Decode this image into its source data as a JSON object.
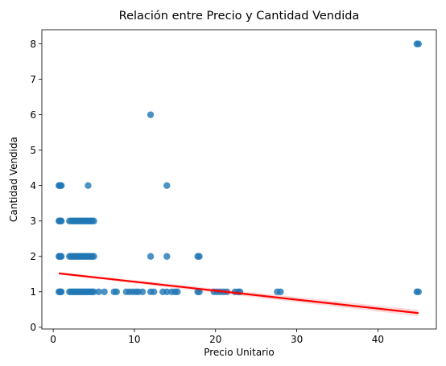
{
  "chart_data": {
    "type": "scatter",
    "title": "Relación entre Precio y Cantidad Vendida",
    "xlabel": "Precio Unitario",
    "ylabel": "Cantidad Vendida",
    "xlim": [
      -1.4,
      47.2
    ],
    "ylim": [
      -0.05,
      8.4
    ],
    "xticks": [
      0,
      10,
      20,
      30,
      40
    ],
    "yticks": [
      0,
      1,
      2,
      3,
      4,
      5,
      6,
      7,
      8
    ],
    "grid": false,
    "point_color": "#1f77b4",
    "regression_color": "#ff0000",
    "regression_line": {
      "x": [
        0.7,
        45
      ],
      "y": [
        1.52,
        0.4
      ]
    },
    "series": [
      {
        "points": [
          [
            0.7,
            1
          ],
          [
            0.8,
            1
          ],
          [
            0.9,
            1
          ],
          [
            1.0,
            1
          ],
          [
            2.0,
            1
          ],
          [
            2.2,
            1
          ],
          [
            2.4,
            1
          ],
          [
            2.6,
            1
          ],
          [
            2.8,
            1
          ],
          [
            3.0,
            1
          ],
          [
            3.2,
            1
          ],
          [
            3.4,
            1
          ],
          [
            3.6,
            1
          ],
          [
            3.8,
            1
          ],
          [
            4.0,
            1
          ],
          [
            4.2,
            1
          ],
          [
            4.4,
            1
          ],
          [
            4.6,
            1
          ],
          [
            4.8,
            1
          ],
          [
            5.0,
            1
          ],
          [
            5.6,
            1
          ],
          [
            6.3,
            1
          ],
          [
            7.5,
            1
          ],
          [
            7.8,
            1
          ],
          [
            9.0,
            1
          ],
          [
            9.4,
            1
          ],
          [
            9.8,
            1
          ],
          [
            10.2,
            1
          ],
          [
            10.5,
            1
          ],
          [
            11.0,
            1
          ],
          [
            12.0,
            1
          ],
          [
            12.4,
            1
          ],
          [
            13.5,
            1
          ],
          [
            14.0,
            1
          ],
          [
            14.6,
            1
          ],
          [
            15.0,
            1
          ],
          [
            15.3,
            1
          ],
          [
            17.8,
            1
          ],
          [
            18.0,
            1
          ],
          [
            19.8,
            1
          ],
          [
            20.2,
            1
          ],
          [
            20.6,
            1
          ],
          [
            21.0,
            1
          ],
          [
            21.4,
            1
          ],
          [
            22.4,
            1
          ],
          [
            22.8,
            1
          ],
          [
            23.0,
            1
          ],
          [
            27.6,
            1
          ],
          [
            28.0,
            1
          ],
          [
            44.8,
            1
          ],
          [
            45.0,
            1
          ],
          [
            0.7,
            2
          ],
          [
            0.8,
            2
          ],
          [
            0.9,
            2
          ],
          [
            1.0,
            2
          ],
          [
            2.0,
            2
          ],
          [
            2.2,
            2
          ],
          [
            2.4,
            2
          ],
          [
            2.6,
            2
          ],
          [
            2.8,
            2
          ],
          [
            3.0,
            2
          ],
          [
            3.2,
            2
          ],
          [
            3.4,
            2
          ],
          [
            3.6,
            2
          ],
          [
            3.8,
            2
          ],
          [
            4.0,
            2
          ],
          [
            4.2,
            2
          ],
          [
            4.4,
            2
          ],
          [
            4.6,
            2
          ],
          [
            4.8,
            2
          ],
          [
            5.0,
            2
          ],
          [
            12.0,
            2
          ],
          [
            14.0,
            2
          ],
          [
            17.8,
            2
          ],
          [
            18.0,
            2
          ],
          [
            0.7,
            3
          ],
          [
            0.8,
            3
          ],
          [
            0.9,
            3
          ],
          [
            1.0,
            3
          ],
          [
            2.0,
            3
          ],
          [
            2.2,
            3
          ],
          [
            2.4,
            3
          ],
          [
            2.6,
            3
          ],
          [
            2.8,
            3
          ],
          [
            3.0,
            3
          ],
          [
            3.2,
            3
          ],
          [
            3.4,
            3
          ],
          [
            3.6,
            3
          ],
          [
            3.8,
            3
          ],
          [
            4.0,
            3
          ],
          [
            4.2,
            3
          ],
          [
            4.4,
            3
          ],
          [
            4.6,
            3
          ],
          [
            4.8,
            3
          ],
          [
            5.0,
            3
          ],
          [
            0.7,
            4
          ],
          [
            0.8,
            4
          ],
          [
            0.9,
            4
          ],
          [
            1.0,
            4
          ],
          [
            4.3,
            4
          ],
          [
            14.0,
            4
          ],
          [
            12.0,
            6
          ],
          [
            44.8,
            8
          ],
          [
            45.0,
            8
          ]
        ]
      }
    ]
  }
}
